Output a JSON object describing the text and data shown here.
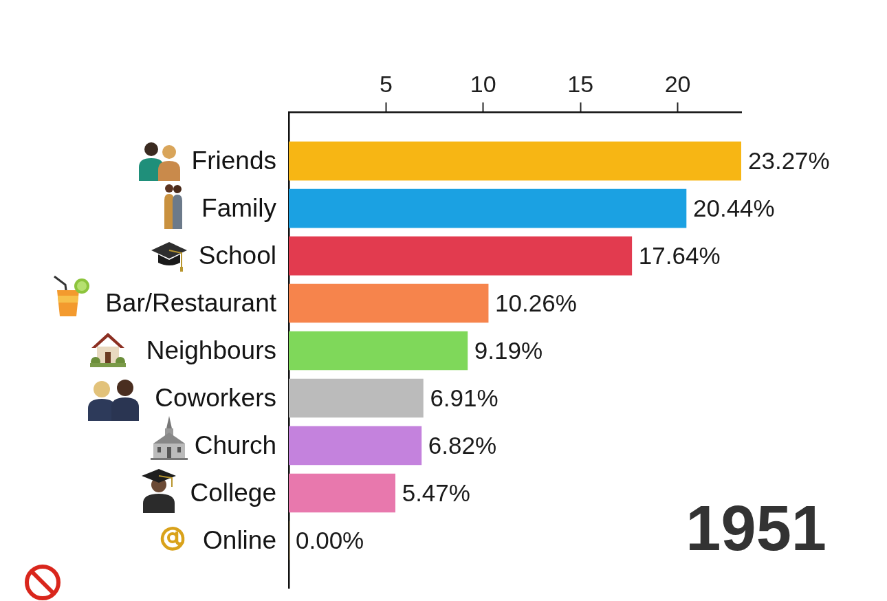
{
  "chart_data": {
    "type": "bar",
    "orientation": "horizontal",
    "categories": [
      "Friends",
      "Family",
      "School",
      "Bar/Restaurant",
      "Neighbours",
      "Coworkers",
      "Church",
      "College",
      "Online"
    ],
    "values": [
      23.27,
      20.44,
      17.64,
      10.26,
      9.19,
      6.91,
      6.82,
      5.47,
      0
    ],
    "colors": [
      "#f7b614",
      "#1ba1e2",
      "#e23b4f",
      "#f6844c",
      "#7fd85a",
      "#bbbbbb",
      "#c482dd",
      "#e878ad",
      "#e8a317"
    ],
    "value_labels": [
      "23.27%",
      "20.44%",
      "17.64%",
      "10.26%",
      "9.19%",
      "6.91%",
      "6.82%",
      "5.47%",
      "0.00%"
    ],
    "xlim": [
      0,
      23.27
    ],
    "xticks": [
      5,
      10,
      15,
      20
    ],
    "annotations": [
      "1951"
    ]
  }
}
